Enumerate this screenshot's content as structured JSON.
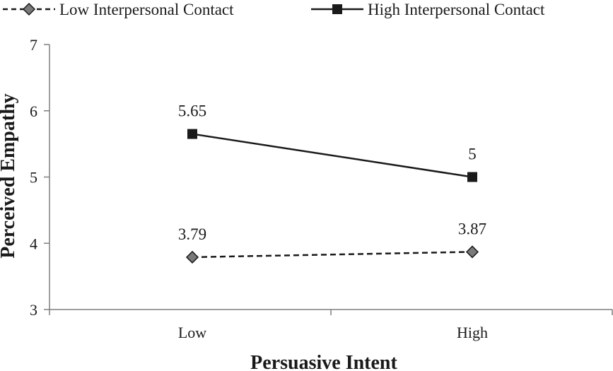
{
  "chart_data": {
    "type": "line",
    "title": "",
    "xlabel": "Persuasive Intent",
    "ylabel": "Perceived Empathy",
    "categories": [
      "Low",
      "High"
    ],
    "ylim": [
      3,
      7
    ],
    "yticks": [
      3,
      4,
      5,
      6,
      7
    ],
    "grid": false,
    "legend": "top",
    "series": [
      {
        "name": "Low Interpersonal Contact",
        "values": [
          3.79,
          3.87
        ],
        "labels": [
          "3.79",
          "3.87"
        ],
        "line_style": "dashed",
        "marker": "diamond",
        "marker_color": "#7a7a7a"
      },
      {
        "name": "High Interpersonal Contact",
        "values": [
          5.65,
          5
        ],
        "labels": [
          "5.65",
          "5"
        ],
        "line_style": "solid",
        "marker": "square",
        "marker_color": "#1a1a1a"
      }
    ]
  }
}
